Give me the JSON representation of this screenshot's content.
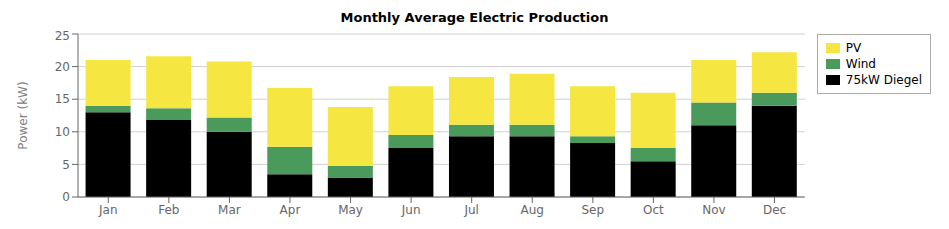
{
  "chart_data": {
    "type": "bar",
    "title": "Monthly Average Electric Production",
    "ylabel": "Power (kW)",
    "categories": [
      "Jan",
      "Feb",
      "Mar",
      "Apr",
      "May",
      "Jun",
      "Jul",
      "Aug",
      "Sep",
      "Oct",
      "Nov",
      "Dec"
    ],
    "series": [
      {
        "name": "75kW Diegel",
        "color": "#000000",
        "values": [
          13.0,
          11.8,
          10.0,
          3.5,
          3.0,
          7.5,
          9.3,
          9.3,
          8.3,
          5.5,
          11.0,
          14.0
        ]
      },
      {
        "name": "Wind",
        "color": "#4a9a5c",
        "values": [
          1.0,
          1.8,
          2.2,
          4.2,
          1.8,
          2.0,
          1.8,
          1.8,
          1.0,
          2.0,
          3.5,
          2.0
        ]
      },
      {
        "name": "PV",
        "color": "#f5e642",
        "values": [
          7.0,
          8.0,
          8.6,
          9.0,
          9.0,
          7.5,
          7.3,
          7.8,
          7.7,
          8.5,
          6.5,
          6.2
        ]
      }
    ],
    "ylim": [
      0,
      25
    ],
    "yticks": [
      0,
      5,
      10,
      15,
      20,
      25
    ],
    "grid": true,
    "stacked": true,
    "legend": "upper right"
  }
}
